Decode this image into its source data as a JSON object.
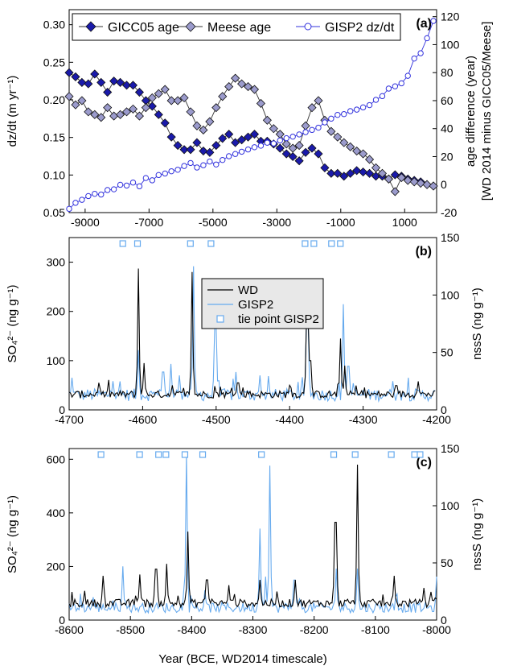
{
  "figure": {
    "xlabel": "Year (BCE, WD2014 timescale)"
  },
  "colors": {
    "gicc05": "#1a1aaa",
    "meese": "#9b9bcc",
    "gisp2_dzdt": "#3333dd",
    "wd": "#000000",
    "gisp2": "#66aaee",
    "tie": "#66aaee"
  },
  "chart_data": [
    {
      "panel": "(a)",
      "type": "line",
      "xlim": [
        -9500,
        2000
      ],
      "xticks": [
        -9000,
        -7000,
        -5000,
        -3000,
        -1000,
        1000
      ],
      "ylabel_left": "dz/dt (m yr⁻¹)",
      "ylim_left": [
        0.05,
        0.32
      ],
      "yticks_left": [
        0.05,
        0.1,
        0.15,
        0.2,
        0.25,
        0.3
      ],
      "ylabel_right": "age difference (year)",
      "ylabel_right_2": "[WD 2014 minus GICC05/Meese]",
      "ylim_right": [
        -20,
        125
      ],
      "yticks_right": [
        -20,
        0,
        20,
        40,
        60,
        80,
        100,
        120
      ],
      "legend": [
        "GICC05 age",
        "Meese age",
        "GISP2 dz/dt"
      ],
      "series": [
        {
          "name": "GICC05 age",
          "axis": "right",
          "marker": "diamond",
          "color": "#1a1aaa",
          "x": [
            -9500,
            -9300,
            -9100,
            -8900,
            -8700,
            -8500,
            -8300,
            -8100,
            -7900,
            -7700,
            -7500,
            -7300,
            -7100,
            -6900,
            -6700,
            -6500,
            -6300,
            -6100,
            -5900,
            -5700,
            -5500,
            -5300,
            -5100,
            -4900,
            -4700,
            -4500,
            -4300,
            -4100,
            -3900,
            -3700,
            -3500,
            -3300,
            -3100,
            -2900,
            -2700,
            -2500,
            -2300,
            -2100,
            -1900,
            -1700,
            -1500,
            -1300,
            -1100,
            -900,
            -700,
            -500,
            -300,
            -100,
            100,
            300,
            500,
            700,
            900,
            1100,
            1300,
            1500,
            1700,
            1900
          ],
          "y": [
            80,
            77,
            73,
            72,
            79,
            73,
            66,
            74,
            73,
            71,
            71,
            66,
            60,
            56,
            50,
            44,
            34,
            28,
            25,
            25,
            30,
            24,
            23,
            28,
            33,
            36,
            30,
            32,
            34,
            36,
            31,
            31,
            29,
            26,
            22,
            20,
            17,
            23,
            26,
            22,
            12,
            8,
            8,
            6,
            8,
            10,
            9,
            8,
            6,
            6,
            4,
            7,
            6,
            4,
            3,
            2,
            0,
            -1
          ]
        },
        {
          "name": "Meese age",
          "axis": "right",
          "marker": "diamond",
          "color": "#9b9bcc",
          "x": [
            -9500,
            -9300,
            -9100,
            -8900,
            -8700,
            -8500,
            -8300,
            -8100,
            -7900,
            -7700,
            -7500,
            -7300,
            -7100,
            -6900,
            -6700,
            -6500,
            -6300,
            -6100,
            -5900,
            -5700,
            -5500,
            -5300,
            -5100,
            -4900,
            -4700,
            -4500,
            -4300,
            -4100,
            -3900,
            -3700,
            -3500,
            -3300,
            -3100,
            -2900,
            -2700,
            -2500,
            -2300,
            -2100,
            -1900,
            -1700,
            -1500,
            -1300,
            -1100,
            -900,
            -700,
            -500,
            -300,
            -100,
            100,
            300,
            500,
            700,
            900,
            1100,
            1300,
            1500,
            1700,
            1900
          ],
          "y": [
            63,
            57,
            60,
            52,
            50,
            48,
            55,
            49,
            50,
            52,
            54,
            49,
            55,
            62,
            65,
            68,
            60,
            60,
            62,
            52,
            42,
            39,
            45,
            55,
            63,
            70,
            76,
            72,
            70,
            68,
            58,
            46,
            40,
            36,
            29,
            26,
            28,
            42,
            55,
            60,
            46,
            38,
            34,
            30,
            27,
            24,
            22,
            18,
            12,
            8,
            4,
            -5,
            5,
            3,
            2,
            1,
            0,
            -1
          ]
        },
        {
          "name": "GISP2 dz/dt",
          "axis": "left",
          "marker": "circle",
          "color": "#3333dd",
          "x": [
            -9500,
            -9300,
            -9100,
            -8900,
            -8700,
            -8500,
            -8300,
            -8100,
            -7900,
            -7700,
            -7500,
            -7300,
            -7100,
            -6900,
            -6700,
            -6500,
            -6300,
            -6100,
            -5900,
            -5700,
            -5500,
            -5300,
            -5100,
            -4900,
            -4700,
            -4500,
            -4300,
            -4100,
            -3900,
            -3700,
            -3500,
            -3300,
            -3100,
            -2900,
            -2700,
            -2500,
            -2300,
            -2100,
            -1900,
            -1700,
            -1500,
            -1300,
            -1100,
            -900,
            -700,
            -500,
            -300,
            -100,
            100,
            300,
            500,
            700,
            900,
            1100,
            1300,
            1500,
            1700,
            1900
          ],
          "y": [
            0.055,
            0.063,
            0.067,
            0.072,
            0.075,
            0.074,
            0.08,
            0.081,
            0.087,
            0.086,
            0.09,
            0.085,
            0.096,
            0.093,
            0.1,
            0.102,
            0.105,
            0.107,
            0.112,
            0.116,
            0.11,
            0.113,
            0.118,
            0.114,
            0.12,
            0.125,
            0.128,
            0.131,
            0.134,
            0.137,
            0.139,
            0.143,
            0.142,
            0.146,
            0.149,
            0.151,
            0.154,
            0.157,
            0.16,
            0.163,
            0.17,
            0.175,
            0.18,
            0.181,
            0.185,
            0.187,
            0.19,
            0.193,
            0.2,
            0.205,
            0.215,
            0.218,
            0.222,
            0.232,
            0.255,
            0.262,
            0.282,
            0.305
          ]
        }
      ]
    },
    {
      "panel": "(b)",
      "type": "line",
      "xlim": [
        -4700,
        -4200
      ],
      "xticks": [
        -4700,
        -4600,
        -4500,
        -4400,
        -4300,
        -4200
      ],
      "ylabel_left": "SO₄²⁻ (ng g⁻¹)",
      "ylim_left": [
        0,
        350
      ],
      "yticks_left": [
        0,
        100,
        200,
        300
      ],
      "ylabel_right": "nssS (ng g⁻¹)",
      "ylim_right": [
        0,
        150
      ],
      "yticks_right": [
        0,
        50,
        100,
        150
      ],
      "legend": [
        "WD",
        "GISP2",
        "tie point GISP2"
      ],
      "series": [
        {
          "name": "WD",
          "axis": "left",
          "color": "#000000",
          "baseline": 30,
          "peaks": [
            [
              -4605,
              287
            ],
            [
              -4598,
              95
            ],
            [
              -4532,
              280
            ],
            [
              -4470,
              55
            ],
            [
              -4376,
              195
            ],
            [
              -4372,
              100
            ],
            [
              -4330,
              145
            ],
            [
              -4325,
              90
            ],
            [
              -4225,
              58
            ],
            [
              -4660,
              55
            ],
            [
              -4560,
              50
            ],
            [
              -4400,
              50
            ]
          ]
        },
        {
          "name": "GISP2",
          "axis": "right",
          "color": "#66aaee",
          "baseline": 12,
          "peaks": [
            [
              -4696,
              28
            ],
            [
              -4605,
              52
            ],
            [
              -4572,
              33
            ],
            [
              -4562,
              40
            ],
            [
              -4550,
              30
            ],
            [
              -4531,
              125
            ],
            [
              -4501,
              72
            ],
            [
              -4473,
              33
            ],
            [
              -4376,
              82
            ],
            [
              -4327,
              92
            ],
            [
              -4320,
              38
            ],
            [
              -4440,
              30
            ],
            [
              -4640,
              25
            ],
            [
              -4260,
              25
            ]
          ]
        },
        {
          "name": "tie point GISP2",
          "marker": "square",
          "color": "#66aaee",
          "x": [
            -4627,
            -4607,
            -4535,
            -4507,
            -4379,
            -4367,
            -4343,
            -4331
          ]
        }
      ]
    },
    {
      "panel": "(c)",
      "type": "line",
      "xlim": [
        -8600,
        -8000
      ],
      "xticks": [
        -8600,
        -8500,
        -8400,
        -8300,
        -8200,
        -8100,
        -8000
      ],
      "ylabel_left": "SO₄²⁻ (ng g⁻¹)",
      "ylim_left": [
        0,
        640
      ],
      "yticks_left": [
        0,
        200,
        400,
        600
      ],
      "ylabel_right": "nssS (ng g⁻¹)",
      "ylim_right": [
        0,
        150
      ],
      "yticks_right": [
        0,
        50,
        100,
        150
      ],
      "series": [
        {
          "name": "WD",
          "axis": "left",
          "color": "#000000",
          "baseline": 60,
          "peaks": [
            [
              -8545,
              165
            ],
            [
              -8484,
              170
            ],
            [
              -8458,
              190
            ],
            [
              -8440,
              210
            ],
            [
              -8407,
              330
            ],
            [
              -8375,
              150
            ],
            [
              -8340,
              130
            ],
            [
              -8288,
              150
            ],
            [
              -8230,
              150
            ],
            [
              -8165,
              365
            ],
            [
              -8130,
              580
            ],
            [
              -8070,
              165
            ],
            [
              -8020,
              120
            ]
          ]
        },
        {
          "name": "GISP2",
          "axis": "right",
          "color": "#66aaee",
          "baseline": 10,
          "peaks": [
            [
              -8512,
              47
            ],
            [
              -8408,
              145
            ],
            [
              -8288,
              80
            ],
            [
              -8280,
              38
            ],
            [
              -8272,
              135
            ],
            [
              -8232,
              35
            ],
            [
              -8164,
              45
            ],
            [
              -8130,
              45
            ],
            [
              -8000,
              38
            ],
            [
              -8560,
              20
            ]
          ]
        },
        {
          "name": "tie point GISP2",
          "marker": "square",
          "color": "#66aaee",
          "x": [
            -8548,
            -8485,
            -8454,
            -8442,
            -8411,
            -8382,
            -8286,
            -8168,
            -8133,
            -8074,
            -8036,
            -8027
          ]
        }
      ]
    }
  ]
}
